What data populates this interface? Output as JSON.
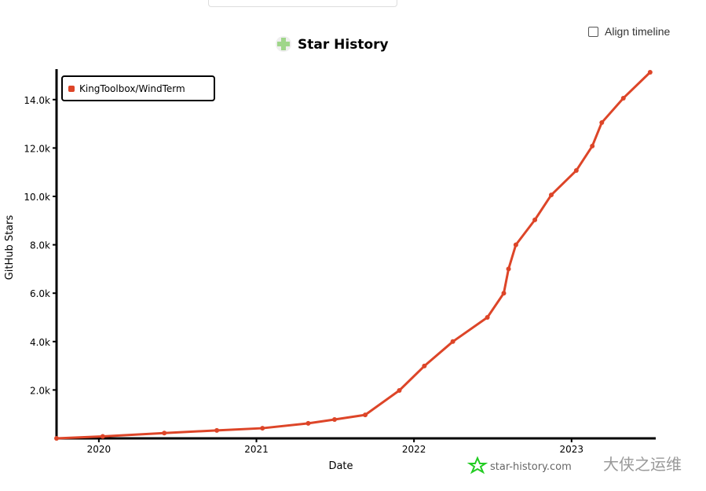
{
  "controls": {
    "align_timeline_label": "Align timeline",
    "align_timeline_checked": false
  },
  "watermark": {
    "site": "star-history.com",
    "overlay": "大侠之运维"
  },
  "colors": {
    "series": "#dd4528",
    "logo": "#9fd68a",
    "watermark_star": "#22cc22"
  },
  "chart_data": {
    "type": "line",
    "title": "Star History",
    "xlabel": "Date",
    "ylabel": "GitHub Stars",
    "x_ticks": [
      "2020",
      "2021",
      "2022",
      "2023"
    ],
    "y_ticks": [
      "2.0k",
      "4.0k",
      "6.0k",
      "8.0k",
      "10.0k",
      "12.0k",
      "14.0k"
    ],
    "ylim": [
      0,
      15200
    ],
    "xlim": [
      "2019-09-25",
      "2023-07-15"
    ],
    "legend_placement": "top-left",
    "grid": false,
    "series": [
      {
        "name": "KingToolbox/WindTerm",
        "color": "#dd4528",
        "points": [
          [
            "2019-09-25",
            0
          ],
          [
            "2020-01-10",
            80
          ],
          [
            "2020-06-01",
            220
          ],
          [
            "2020-10-01",
            330
          ],
          [
            "2021-01-15",
            420
          ],
          [
            "2021-05-01",
            620
          ],
          [
            "2021-07-01",
            780
          ],
          [
            "2021-09-10",
            970
          ],
          [
            "2021-11-28",
            1980
          ],
          [
            "2022-01-25",
            2990
          ],
          [
            "2022-04-01",
            4000
          ],
          [
            "2022-06-20",
            5000
          ],
          [
            "2022-07-28",
            6000
          ],
          [
            "2022-08-08",
            7000
          ],
          [
            "2022-08-25",
            8000
          ],
          [
            "2022-10-08",
            9030
          ],
          [
            "2022-11-15",
            10060
          ],
          [
            "2023-01-12",
            11070
          ],
          [
            "2023-02-18",
            12080
          ],
          [
            "2023-03-12",
            13050
          ],
          [
            "2023-05-01",
            14060
          ],
          [
            "2023-07-02",
            15130
          ]
        ]
      }
    ]
  }
}
